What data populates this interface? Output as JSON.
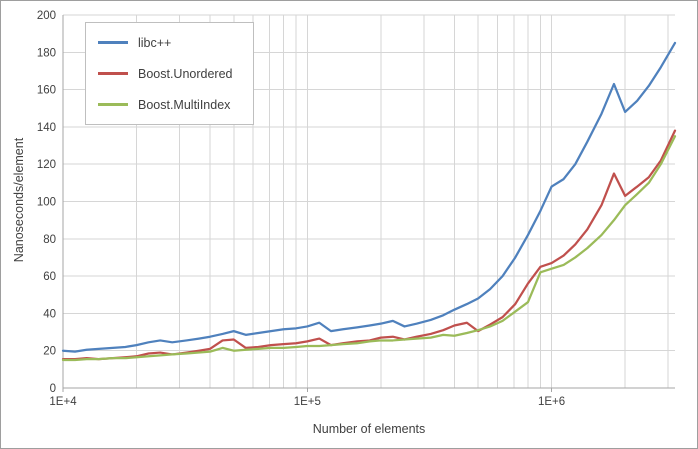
{
  "chart_data": {
    "type": "line",
    "title": "",
    "xlabel": "Number of elements",
    "ylabel": "Nanoseconds/element",
    "x_scale": "log",
    "xlim": [
      10000,
      3200000
    ],
    "ylim": [
      0,
      200
    ],
    "y_tick_step": 20,
    "x_tick_values": [
      10000,
      100000,
      1000000
    ],
    "x_tick_labels": [
      "1E+4",
      "1E+5",
      "1E+6"
    ],
    "grid": true,
    "legend_position": "top-left",
    "x": [
      10000,
      11200,
      12500,
      14000,
      16000,
      18000,
      20000,
      22400,
      25000,
      28000,
      32000,
      36000,
      40000,
      45000,
      50000,
      56000,
      63000,
      71000,
      80000,
      90000,
      100000,
      112000,
      125000,
      140000,
      160000,
      180000,
      200000,
      224000,
      250000,
      280000,
      320000,
      360000,
      400000,
      450000,
      500000,
      560000,
      630000,
      710000,
      800000,
      900000,
      1000000,
      1120000,
      1250000,
      1400000,
      1600000,
      1800000,
      2000000,
      2240000,
      2500000,
      2800000,
      3200000
    ],
    "series": [
      {
        "name": "libc++",
        "color": "#4F81BD",
        "values": [
          20,
          19.5,
          20.5,
          21,
          21.5,
          22,
          23,
          24.5,
          25.5,
          24.5,
          25.5,
          26.5,
          27.5,
          29,
          30.5,
          28.5,
          29.5,
          30.5,
          31.5,
          32,
          33,
          35,
          30.5,
          31.5,
          32.5,
          33.5,
          34.5,
          36,
          33,
          34.5,
          36.5,
          39,
          42,
          45,
          48,
          53,
          60,
          70,
          82,
          95,
          108,
          112,
          120,
          132,
          147,
          163,
          148,
          154,
          162,
          172,
          185
        ]
      },
      {
        "name": "Boost.Unordered",
        "color": "#C0504D",
        "values": [
          15.5,
          15.5,
          16,
          15.5,
          16,
          16.5,
          17,
          18.5,
          19,
          18,
          19,
          20,
          21,
          25.5,
          26,
          21.5,
          22,
          23,
          23.5,
          24,
          25,
          26.5,
          23,
          24,
          25,
          25.5,
          27,
          27.5,
          26,
          27.5,
          29,
          31,
          33.5,
          35,
          30.5,
          34,
          38,
          45,
          56,
          65,
          67,
          71,
          77,
          85,
          98,
          115,
          103,
          108,
          113,
          122,
          138
        ]
      },
      {
        "name": "Boost.MultiIndex",
        "color": "#9BBB59",
        "values": [
          15,
          15,
          15.5,
          15.5,
          16,
          16,
          16.5,
          17,
          17.5,
          18,
          18.5,
          19,
          19.5,
          21.5,
          20,
          20.5,
          21,
          21.5,
          21.5,
          22,
          22.5,
          22.5,
          23,
          23.5,
          24,
          25,
          25.5,
          25.5,
          26,
          26.5,
          27,
          28.5,
          28,
          29.5,
          31,
          33,
          36,
          41,
          46,
          62,
          64,
          66,
          70,
          75,
          82,
          90,
          98,
          104,
          110,
          120,
          135
        ]
      }
    ]
  },
  "colors": {
    "grid": "#d6d6d6",
    "axis": "#a6a6a6",
    "tick_text": "#404040",
    "frame_border": "#9e9e9e",
    "background": "#ffffff"
  }
}
